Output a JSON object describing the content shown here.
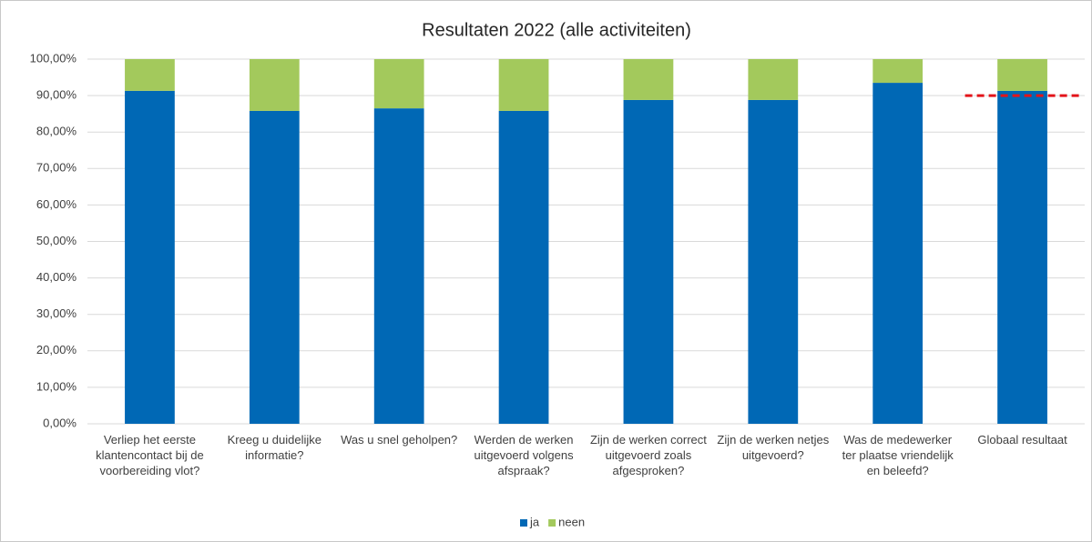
{
  "chart_data": {
    "type": "stacked_bar",
    "title": "Resultaten 2022 (alle activiteiten)",
    "categories": [
      "Verliep het eerste klantencontact bij de voorbereiding vlot?",
      "Kreeg u duidelijke informatie?",
      "Was u snel geholpen?",
      "Werden de werken uitgevoerd volgens afspraak?",
      "Zijn de werken correct uitgevoerd zoals afgesproken?",
      "Zijn de werken netjes uitgevoerd?",
      "Was de medewerker ter plaatse vriendelijk en beleefd?",
      "Globaal resultaat"
    ],
    "series": [
      {
        "name": "ja",
        "color": "#0068b5",
        "values": [
          91.3,
          85.8,
          86.5,
          85.8,
          88.8,
          88.8,
          93.5,
          91.3
        ]
      },
      {
        "name": "neen",
        "color": "#a3c95c",
        "values": [
          8.7,
          14.2,
          13.5,
          14.2,
          11.2,
          11.2,
          6.5,
          8.7
        ]
      }
    ],
    "ylim": [
      0,
      100
    ],
    "yticks": [
      {
        "value": 0,
        "label": "0,00%"
      },
      {
        "value": 10,
        "label": "10,00%"
      },
      {
        "value": 20,
        "label": "20,00%"
      },
      {
        "value": 30,
        "label": "30,00%"
      },
      {
        "value": 40,
        "label": "40,00%"
      },
      {
        "value": 50,
        "label": "50,00%"
      },
      {
        "value": 60,
        "label": "60,00%"
      },
      {
        "value": 70,
        "label": "70,00%"
      },
      {
        "value": 80,
        "label": "80,00%"
      },
      {
        "value": 90,
        "label": "90,00%"
      },
      {
        "value": 100,
        "label": "100,00%"
      }
    ],
    "grid": true,
    "legend": "bottom",
    "reference_line": {
      "value": 90,
      "color": "#e3141a",
      "style": "dashed"
    }
  }
}
